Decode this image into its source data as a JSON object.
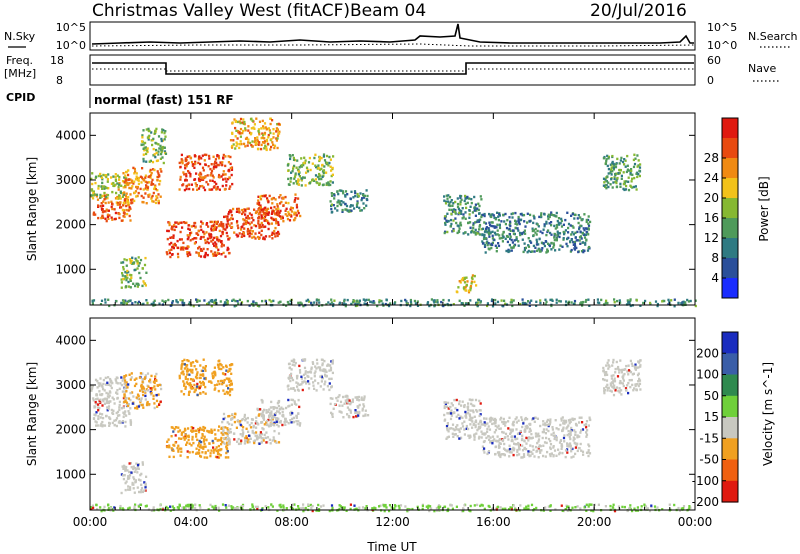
{
  "header": {
    "title": "Christmas Valley West (fitACF)",
    "beam": "Beam 04",
    "date": "20/Jul/2016"
  },
  "strip_labels": {
    "nsky": "N.Sky",
    "nsearch": "N.Search",
    "freq": "Freq.",
    "freq_unit": "[MHz]",
    "nave": "Nave",
    "cpid": "CPID",
    "cpid_value": "normal (fast) 151 RF"
  },
  "strip_ticks": {
    "noise_left": [
      "10^5",
      "10^0"
    ],
    "noise_right": [
      "10^5",
      "10^0"
    ],
    "freq_left": [
      "18",
      "8"
    ],
    "nave_right": [
      "60",
      "0"
    ]
  },
  "chart_data": [
    {
      "type": "heatmap",
      "title": "",
      "xlabel": "",
      "ylabel": "Slant Range [km]",
      "xlim": [
        "00:00",
        "24:00"
      ],
      "ylim": [
        200,
        4500
      ],
      "x_tick_labels": [
        "00:00",
        "04:00",
        "08:00",
        "12:00",
        "16:00",
        "20:00",
        "00:00"
      ],
      "y_tick_labels": [
        "1000",
        "2000",
        "3000",
        "4000"
      ],
      "colorbar": {
        "label": "Power [dB]",
        "ticks": [
          "4",
          "8",
          "12",
          "16",
          "20",
          "24",
          "28"
        ],
        "colors": [
          "#1a2cff",
          "#2a4f9a",
          "#2f7a82",
          "#4f9a5a",
          "#86b832",
          "#f2c21a",
          "#f08a12",
          "#e84a10",
          "#e01a10"
        ]
      },
      "blobs": [
        {
          "t0": 0.1,
          "t1": 1.6,
          "r0": 2100,
          "r1": 2700,
          "value": 24
        },
        {
          "t0": 0.0,
          "t1": 1.4,
          "r0": 2600,
          "r1": 3200,
          "value": 16
        },
        {
          "t0": 1.3,
          "t1": 2.8,
          "r0": 2500,
          "r1": 3300,
          "value": 22
        },
        {
          "t0": 2.0,
          "t1": 3.0,
          "r0": 3400,
          "r1": 4200,
          "value": 14
        },
        {
          "t0": 3.5,
          "t1": 5.6,
          "r0": 2800,
          "r1": 3600,
          "value": 26
        },
        {
          "t0": 3.0,
          "t1": 5.5,
          "r0": 1300,
          "r1": 2100,
          "value": 26
        },
        {
          "t0": 5.2,
          "t1": 7.5,
          "r0": 1700,
          "r1": 2400,
          "value": 26
        },
        {
          "t0": 6.6,
          "t1": 8.3,
          "r0": 2100,
          "r1": 2700,
          "value": 24
        },
        {
          "t0": 5.5,
          "t1": 7.5,
          "r0": 3700,
          "r1": 4400,
          "value": 20
        },
        {
          "t0": 7.8,
          "t1": 9.6,
          "r0": 2900,
          "r1": 3600,
          "value": 14
        },
        {
          "t0": 9.5,
          "t1": 11.0,
          "r0": 2300,
          "r1": 2800,
          "value": 10
        },
        {
          "t0": 14.0,
          "t1": 15.5,
          "r0": 1800,
          "r1": 2700,
          "value": 10
        },
        {
          "t0": 15.5,
          "t1": 19.8,
          "r0": 1400,
          "r1": 2300,
          "value": 9
        },
        {
          "t0": 20.3,
          "t1": 21.8,
          "r0": 2800,
          "r1": 3600,
          "value": 12
        },
        {
          "t0": 1.2,
          "t1": 2.2,
          "r0": 600,
          "r1": 1300,
          "value": 14
        },
        {
          "t0": 14.5,
          "t1": 15.3,
          "r0": 500,
          "r1": 900,
          "value": 18
        },
        {
          "t0": 0.0,
          "t1": 24.0,
          "r0": 200,
          "r1": 350,
          "value": 10
        }
      ]
    },
    {
      "type": "heatmap",
      "title": "",
      "xlabel": "Time UT",
      "ylabel": "Slant Range [km]",
      "xlim": [
        "00:00",
        "24:00"
      ],
      "ylim": [
        200,
        4500
      ],
      "x_tick_labels": [
        "00:00",
        "04:00",
        "08:00",
        "12:00",
        "16:00",
        "20:00",
        "00:00"
      ],
      "y_tick_labels": [
        "1000",
        "2000",
        "3000",
        "4000"
      ],
      "colorbar": {
        "label": "Velocity [m s^-1]",
        "ticks": [
          "200",
          "100",
          "50",
          "15",
          "-15",
          "-50",
          "-100",
          "-200"
        ],
        "colors": [
          "#1a2cbf",
          "#3a5ea8",
          "#2f8a4f",
          "#6fd03a",
          "#c8c8c0",
          "#f0a020",
          "#f06010",
          "#e01a10"
        ]
      },
      "blobs": [
        {
          "t0": 0.1,
          "t1": 1.6,
          "r0": 2100,
          "r1": 2700,
          "value": 0
        },
        {
          "t0": 0.0,
          "t1": 1.4,
          "r0": 2600,
          "r1": 3200,
          "value": 0
        },
        {
          "t0": 1.3,
          "t1": 2.8,
          "r0": 2500,
          "r1": 3300,
          "value": -20
        },
        {
          "t0": 3.5,
          "t1": 5.6,
          "r0": 2800,
          "r1": 3600,
          "value": -60
        },
        {
          "t0": 3.0,
          "t1": 5.5,
          "r0": 1400,
          "r1": 2100,
          "value": -40
        },
        {
          "t0": 5.2,
          "t1": 7.5,
          "r0": 1700,
          "r1": 2400,
          "value": -10
        },
        {
          "t0": 6.6,
          "t1": 8.3,
          "r0": 2100,
          "r1": 2700,
          "value": 5
        },
        {
          "t0": 7.8,
          "t1": 9.6,
          "r0": 2900,
          "r1": 3600,
          "value": 0
        },
        {
          "t0": 9.5,
          "t1": 11.0,
          "r0": 2300,
          "r1": 2800,
          "value": 0
        },
        {
          "t0": 14.0,
          "t1": 15.5,
          "r0": 1800,
          "r1": 2700,
          "value": 0
        },
        {
          "t0": 15.5,
          "t1": 19.8,
          "r0": 1400,
          "r1": 2300,
          "value": 0
        },
        {
          "t0": 20.3,
          "t1": 21.8,
          "r0": 2800,
          "r1": 3600,
          "value": 0
        },
        {
          "t0": 1.2,
          "t1": 2.2,
          "r0": 600,
          "r1": 1300,
          "value": 0
        },
        {
          "t0": 0.0,
          "t1": 24.0,
          "r0": 200,
          "r1": 350,
          "value": 20
        }
      ]
    }
  ]
}
